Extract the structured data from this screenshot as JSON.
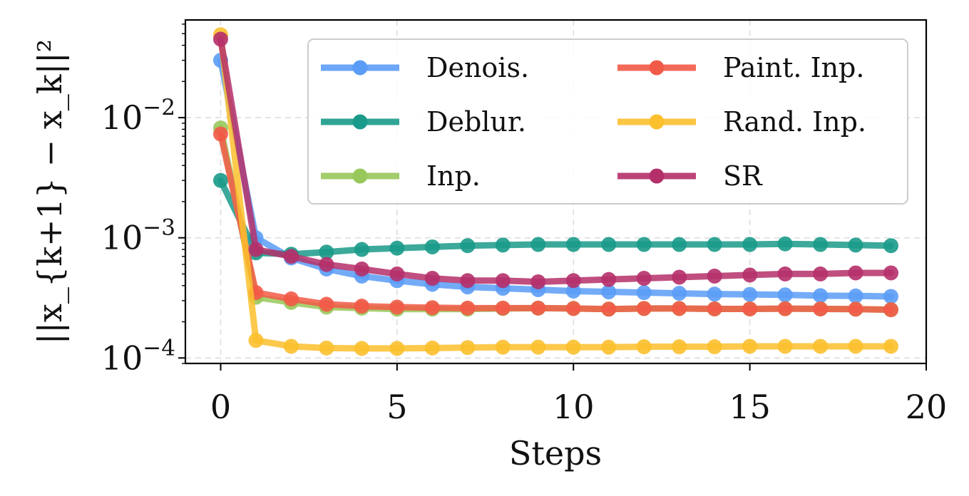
{
  "chart_data": {
    "type": "line",
    "xlabel": "Steps",
    "ylabel": "||x_{k+1} − x_k||²",
    "yscale": "log",
    "xlim": [
      -1,
      20
    ],
    "ylim": [
      9e-05,
      0.065
    ],
    "grid": true,
    "legend_position": "top-right",
    "x_ticks": [
      {
        "value": 0,
        "label": "0"
      },
      {
        "value": 5,
        "label": "5"
      },
      {
        "value": 10,
        "label": "10"
      },
      {
        "value": 15,
        "label": "15"
      },
      {
        "value": 20,
        "label": "20"
      }
    ],
    "y_ticks": [
      {
        "value": 0.0001,
        "base": "10",
        "exp": "−4"
      },
      {
        "value": 0.001,
        "base": "10",
        "exp": "−3"
      },
      {
        "value": 0.01,
        "base": "10",
        "exp": "−2"
      }
    ],
    "x": [
      0,
      1,
      2,
      3,
      4,
      5,
      6,
      7,
      8,
      9,
      10,
      11,
      12,
      13,
      14,
      15,
      16,
      17,
      18,
      19
    ],
    "series": [
      {
        "name": "Denois.",
        "color": "#5b9cf6",
        "values": [
          0.03,
          0.001,
          0.00068,
          0.00055,
          0.00048,
          0.00044,
          0.00041,
          0.00039,
          0.00038,
          0.00037,
          0.00036,
          0.000355,
          0.00035,
          0.000345,
          0.00034,
          0.000338,
          0.000335,
          0.00033,
          0.000328,
          0.000325
        ]
      },
      {
        "name": "Deblur.",
        "color": "#1a9a8a",
        "values": [
          0.003,
          0.00075,
          0.00073,
          0.00076,
          0.0008,
          0.00082,
          0.00084,
          0.00086,
          0.00087,
          0.00088,
          0.00088,
          0.00088,
          0.00088,
          0.00088,
          0.00088,
          0.00088,
          0.00089,
          0.00088,
          0.00087,
          0.00086
        ]
      },
      {
        "name": "Inp.",
        "color": "#98c85a",
        "values": [
          0.0082,
          0.00032,
          0.00029,
          0.000265,
          0.00026,
          0.000255,
          0.000255,
          0.000255,
          0.000258,
          0.00026,
          0.000258,
          0.000255,
          0.000258,
          0.000258,
          0.000256,
          0.000256,
          0.000257,
          0.000256,
          0.000255,
          0.000252
        ]
      },
      {
        "name": "Paint. Inp.",
        "color": "#f25a48",
        "values": [
          0.0073,
          0.00035,
          0.00031,
          0.00028,
          0.00027,
          0.000265,
          0.000262,
          0.00026,
          0.00026,
          0.00026,
          0.000258,
          0.000255,
          0.000258,
          0.000258,
          0.000256,
          0.000256,
          0.000257,
          0.000256,
          0.000255,
          0.000252
        ]
      },
      {
        "name": "Rand. Inp.",
        "color": "#fbc02d",
        "values": [
          0.049,
          0.00014,
          0.000125,
          0.000121,
          0.00012,
          0.00012,
          0.000121,
          0.000122,
          0.000123,
          0.000123,
          0.000123,
          0.000123,
          0.000124,
          0.000124,
          0.000124,
          0.000125,
          0.000125,
          0.000125,
          0.000125,
          0.000125
        ]
      },
      {
        "name": "SR",
        "color": "#b5306a",
        "values": [
          0.045,
          0.0008,
          0.0007,
          0.0006,
          0.00055,
          0.0005,
          0.00046,
          0.00044,
          0.00044,
          0.00043,
          0.00044,
          0.00045,
          0.00046,
          0.00047,
          0.00048,
          0.00049,
          0.0005,
          0.0005,
          0.00051,
          0.00051
        ]
      }
    ]
  }
}
